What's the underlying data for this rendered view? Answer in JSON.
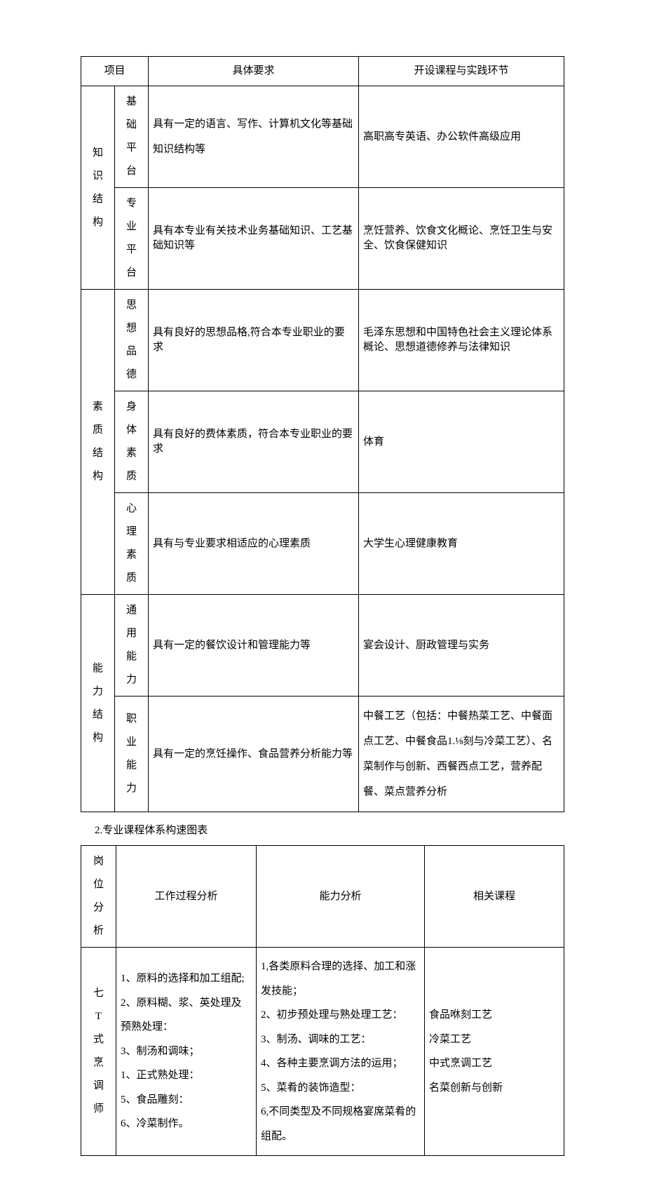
{
  "table1": {
    "headers": [
      "项目",
      "具体要求",
      "开设课程与实践环节"
    ],
    "groups": [
      {
        "group": "知识结构",
        "rows": [
          {
            "sub": "基础平台",
            "req": "具有一定的语言、写作、计算机文化等基础知识结构等",
            "course": "高职高专英语、办公软件高级应用"
          },
          {
            "sub": "专业平台",
            "req": "具有本专业有关技术业务基础知识、工艺基础知识等",
            "course": "烹饪营养、饮食文化概论、烹饪卫生与安全、饮食保健知识"
          }
        ]
      },
      {
        "group": "素质结构",
        "rows": [
          {
            "sub": "思想品德",
            "req": "具有良好的思想品格,符合本专业职业的要求",
            "course": "毛泽东思想和中国特色社会主义理论体系概论、思想道德修养与法律知识"
          },
          {
            "sub": "身体素质",
            "req": "具有良好的费体素质，符合本专业职业的要求",
            "course": "体育"
          },
          {
            "sub": "心理素质",
            "req": "具有与专业要求相适应的心理素质",
            "course": "大学生心理健康教育"
          }
        ]
      },
      {
        "group": "能力结构",
        "rows": [
          {
            "sub": "通用能力",
            "req": "具有一定的餐饮设计和管理能力等",
            "course": "宴会设计、厨政管理与实务"
          },
          {
            "sub": "职业能力",
            "req": "具有一定的烹饪操作、食品营养分析能力等",
            "course": "中餐工艺（包括：中餐热菜工艺、中餐面点工艺、中餐食品1.⅛刻与冷菜工艺）、名菜制作与创新、西餐西点工艺，营养配餐、菜点营养分析"
          }
        ]
      }
    ]
  },
  "caption": "2.专业课程体系构速图表",
  "table2": {
    "headers": [
      "岗位分析",
      "工作过程分析",
      "能力分析",
      "相关课程"
    ],
    "row": {
      "role": "中式烹调师",
      "role_chars": [
        "七",
        "T",
        "式",
        "烹",
        "调",
        "师"
      ],
      "process": "1、原料的选择和加工组配;\n2、原料糊、浆、英处理及预熟处理：\n3、制汤和调味；\n1、正式熟处理：\n5、食品雕刻：\n6、冷菜制作。",
      "ability": "1,各类原料合理的选择、加工和涨发技能；\n2、初步预处理与熟处理工艺：\n3、制汤、调味的工艺：\n4、各种主要烹调方法的运用；\n5、菜肴的装饰造型：\n6,不同类型及不同规格宴席菜肴的组配。",
      "courses": "食品咻刻工艺\n冷菜工艺\n中式烹调工艺\n名菜创新与创新"
    }
  }
}
